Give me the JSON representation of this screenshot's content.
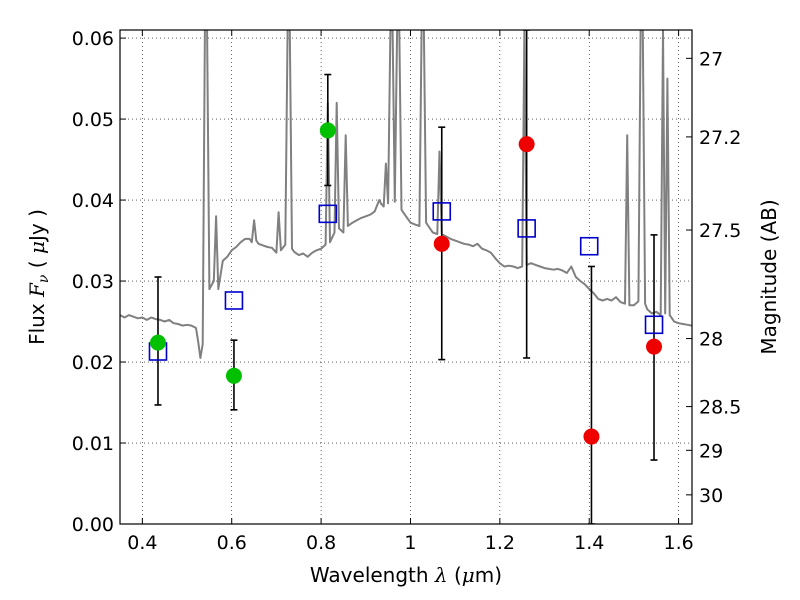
{
  "chart_data": {
    "type": "scatter",
    "xlabel": "Wavelength  λ (μm)",
    "ylabel": "Flux  F_ν  ( μJy )",
    "y2label": "Magnitude (AB)",
    "xlim": [
      0.35,
      1.63
    ],
    "ylim": [
      0.0,
      0.061
    ],
    "grid": true,
    "x_ticks": [
      0.4,
      0.6,
      0.8,
      1.0,
      1.2,
      1.4,
      1.6
    ],
    "x_tick_labels": [
      "0.4",
      "0.6",
      "0.8",
      "1",
      "1.2",
      "1.4",
      "1.6"
    ],
    "y_ticks": [
      0.0,
      0.01,
      0.02,
      0.03,
      0.04,
      0.05,
      0.06
    ],
    "y_tick_labels": [
      "0.00",
      "0.01",
      "0.02",
      "0.03",
      "0.04",
      "0.05",
      "0.06"
    ],
    "y2_ticks": [
      {
        "label": "27",
        "flux": 0.0575
      },
      {
        "label": "27.2",
        "flux": 0.0478
      },
      {
        "label": "27.5",
        "flux": 0.0363
      },
      {
        "label": "28",
        "flux": 0.0229
      },
      {
        "label": "28.5",
        "flux": 0.0145
      },
      {
        "label": "29",
        "flux": 0.0091
      },
      {
        "label": "30",
        "flux": 0.0036
      }
    ],
    "colors": {
      "spectrum": "#808080",
      "green": "#00c000",
      "red": "#ee0000",
      "blue": "#0000cc",
      "errorbar": "#000000"
    },
    "spectrum": [
      [
        0.35,
        0.0258
      ],
      [
        0.36,
        0.0255
      ],
      [
        0.37,
        0.0258
      ],
      [
        0.38,
        0.0256
      ],
      [
        0.39,
        0.0254
      ],
      [
        0.4,
        0.0255
      ],
      [
        0.41,
        0.0252
      ],
      [
        0.42,
        0.0255
      ],
      [
        0.43,
        0.0253
      ],
      [
        0.44,
        0.0252
      ],
      [
        0.45,
        0.025
      ],
      [
        0.46,
        0.0252
      ],
      [
        0.47,
        0.0248
      ],
      [
        0.48,
        0.0247
      ],
      [
        0.49,
        0.0245
      ],
      [
        0.5,
        0.0246
      ],
      [
        0.51,
        0.0245
      ],
      [
        0.52,
        0.0242
      ],
      [
        0.525,
        0.0225
      ],
      [
        0.53,
        0.0205
      ],
      [
        0.535,
        0.0222
      ],
      [
        0.54,
        0.061
      ],
      [
        0.545,
        0.061
      ],
      [
        0.55,
        0.029
      ],
      [
        0.56,
        0.03
      ],
      [
        0.565,
        0.038
      ],
      [
        0.57,
        0.029
      ],
      [
        0.58,
        0.0325
      ],
      [
        0.59,
        0.033
      ],
      [
        0.6,
        0.0338
      ],
      [
        0.61,
        0.0342
      ],
      [
        0.62,
        0.0348
      ],
      [
        0.63,
        0.0352
      ],
      [
        0.64,
        0.0352
      ],
      [
        0.645,
        0.0348
      ],
      [
        0.65,
        0.0375
      ],
      [
        0.655,
        0.035
      ],
      [
        0.66,
        0.0346
      ],
      [
        0.67,
        0.0344
      ],
      [
        0.68,
        0.0342
      ],
      [
        0.69,
        0.0341
      ],
      [
        0.7,
        0.0335
      ],
      [
        0.705,
        0.0385
      ],
      [
        0.71,
        0.0338
      ],
      [
        0.72,
        0.0345
      ],
      [
        0.725,
        0.061
      ],
      [
        0.73,
        0.061
      ],
      [
        0.735,
        0.034
      ],
      [
        0.74,
        0.0336
      ],
      [
        0.75,
        0.0332
      ],
      [
        0.76,
        0.0334
      ],
      [
        0.77,
        0.033
      ],
      [
        0.78,
        0.0335
      ],
      [
        0.79,
        0.0338
      ],
      [
        0.8,
        0.034
      ],
      [
        0.81,
        0.0345
      ],
      [
        0.815,
        0.052
      ],
      [
        0.82,
        0.0348
      ],
      [
        0.83,
        0.036
      ],
      [
        0.835,
        0.052
      ],
      [
        0.84,
        0.0365
      ],
      [
        0.85,
        0.036
      ],
      [
        0.855,
        0.048
      ],
      [
        0.86,
        0.0368
      ],
      [
        0.87,
        0.0372
      ],
      [
        0.88,
        0.0375
      ],
      [
        0.89,
        0.0378
      ],
      [
        0.9,
        0.038
      ],
      [
        0.91,
        0.0382
      ],
      [
        0.92,
        0.0386
      ],
      [
        0.93,
        0.04
      ],
      [
        0.935,
        0.0395
      ],
      [
        0.94,
        0.0392
      ],
      [
        0.945,
        0.0445
      ],
      [
        0.95,
        0.0396
      ],
      [
        0.955,
        0.061
      ],
      [
        0.96,
        0.061
      ],
      [
        0.965,
        0.0398
      ],
      [
        0.97,
        0.061
      ],
      [
        0.975,
        0.061
      ],
      [
        0.98,
        0.0388
      ],
      [
        0.99,
        0.038
      ],
      [
        1.0,
        0.0372
      ],
      [
        1.01,
        0.037
      ],
      [
        1.02,
        0.0368
      ],
      [
        1.025,
        0.061
      ],
      [
        1.03,
        0.061
      ],
      [
        1.035,
        0.0372
      ],
      [
        1.04,
        0.0368
      ],
      [
        1.05,
        0.036
      ],
      [
        1.06,
        0.0358
      ],
      [
        1.065,
        0.046
      ],
      [
        1.07,
        0.0358
      ],
      [
        1.08,
        0.0355
      ],
      [
        1.09,
        0.0352
      ],
      [
        1.1,
        0.035
      ],
      [
        1.11,
        0.0348
      ],
      [
        1.12,
        0.0346
      ],
      [
        1.13,
        0.0345
      ],
      [
        1.14,
        0.0343
      ],
      [
        1.15,
        0.0346
      ],
      [
        1.16,
        0.034
      ],
      [
        1.17,
        0.0338
      ],
      [
        1.18,
        0.0335
      ],
      [
        1.19,
        0.0328
      ],
      [
        1.2,
        0.0322
      ],
      [
        1.21,
        0.0318
      ],
      [
        1.22,
        0.0319
      ],
      [
        1.23,
        0.0318
      ],
      [
        1.24,
        0.0316
      ],
      [
        1.25,
        0.0318
      ],
      [
        1.255,
        0.061
      ],
      [
        1.26,
        0.032
      ],
      [
        1.27,
        0.0322
      ],
      [
        1.28,
        0.032
      ],
      [
        1.29,
        0.0318
      ],
      [
        1.3,
        0.0316
      ],
      [
        1.31,
        0.0315
      ],
      [
        1.32,
        0.0314
      ],
      [
        1.33,
        0.0315
      ],
      [
        1.34,
        0.0313
      ],
      [
        1.35,
        0.031
      ],
      [
        1.36,
        0.0318
      ],
      [
        1.37,
        0.0305
      ],
      [
        1.38,
        0.03
      ],
      [
        1.39,
        0.0296
      ],
      [
        1.4,
        0.029
      ],
      [
        1.41,
        0.0285
      ],
      [
        1.42,
        0.0278
      ],
      [
        1.43,
        0.0276
      ],
      [
        1.44,
        0.0278
      ],
      [
        1.45,
        0.0276
      ],
      [
        1.46,
        0.028
      ],
      [
        1.47,
        0.0274
      ],
      [
        1.48,
        0.0272
      ],
      [
        1.485,
        0.048
      ],
      [
        1.49,
        0.027
      ],
      [
        1.5,
        0.027
      ],
      [
        1.51,
        0.0275
      ],
      [
        1.515,
        0.061
      ],
      [
        1.52,
        0.061
      ],
      [
        1.525,
        0.0272
      ],
      [
        1.53,
        0.0265
      ],
      [
        1.54,
        0.026
      ],
      [
        1.55,
        0.0262
      ],
      [
        1.56,
        0.0258
      ],
      [
        1.565,
        0.061
      ],
      [
        1.57,
        0.026
      ],
      [
        1.575,
        0.055
      ],
      [
        1.58,
        0.0258
      ],
      [
        1.59,
        0.025
      ],
      [
        1.6,
        0.0248
      ],
      [
        1.61,
        0.0247
      ],
      [
        1.62,
        0.0246
      ],
      [
        1.63,
        0.0245
      ]
    ],
    "green_points": [
      {
        "x": 0.435,
        "y": 0.0224,
        "err_low": 0.0147,
        "err_high": 0.0305
      },
      {
        "x": 0.605,
        "y": 0.0183,
        "err_low": 0.0141,
        "err_high": 0.0227
      },
      {
        "x": 0.815,
        "y": 0.0486,
        "err_low": 0.0418,
        "err_high": 0.0555
      }
    ],
    "red_points": [
      {
        "x": 1.07,
        "y": 0.0346,
        "err_low": 0.0203,
        "err_high": 0.049
      },
      {
        "x": 1.26,
        "y": 0.0469,
        "err_low": 0.0205,
        "err_high": 0.061
      },
      {
        "x": 1.405,
        "y": 0.0108,
        "err_low": 0.0,
        "err_high": 0.0318
      },
      {
        "x": 1.545,
        "y": 0.0219,
        "err_low": 0.0079,
        "err_high": 0.0357
      }
    ],
    "blue_squares": [
      {
        "x": 0.435,
        "y": 0.0213
      },
      {
        "x": 0.605,
        "y": 0.0276
      },
      {
        "x": 0.815,
        "y": 0.0383
      },
      {
        "x": 1.07,
        "y": 0.0386
      },
      {
        "x": 1.26,
        "y": 0.0365
      },
      {
        "x": 1.4,
        "y": 0.0343
      },
      {
        "x": 1.545,
        "y": 0.0246
      }
    ]
  }
}
